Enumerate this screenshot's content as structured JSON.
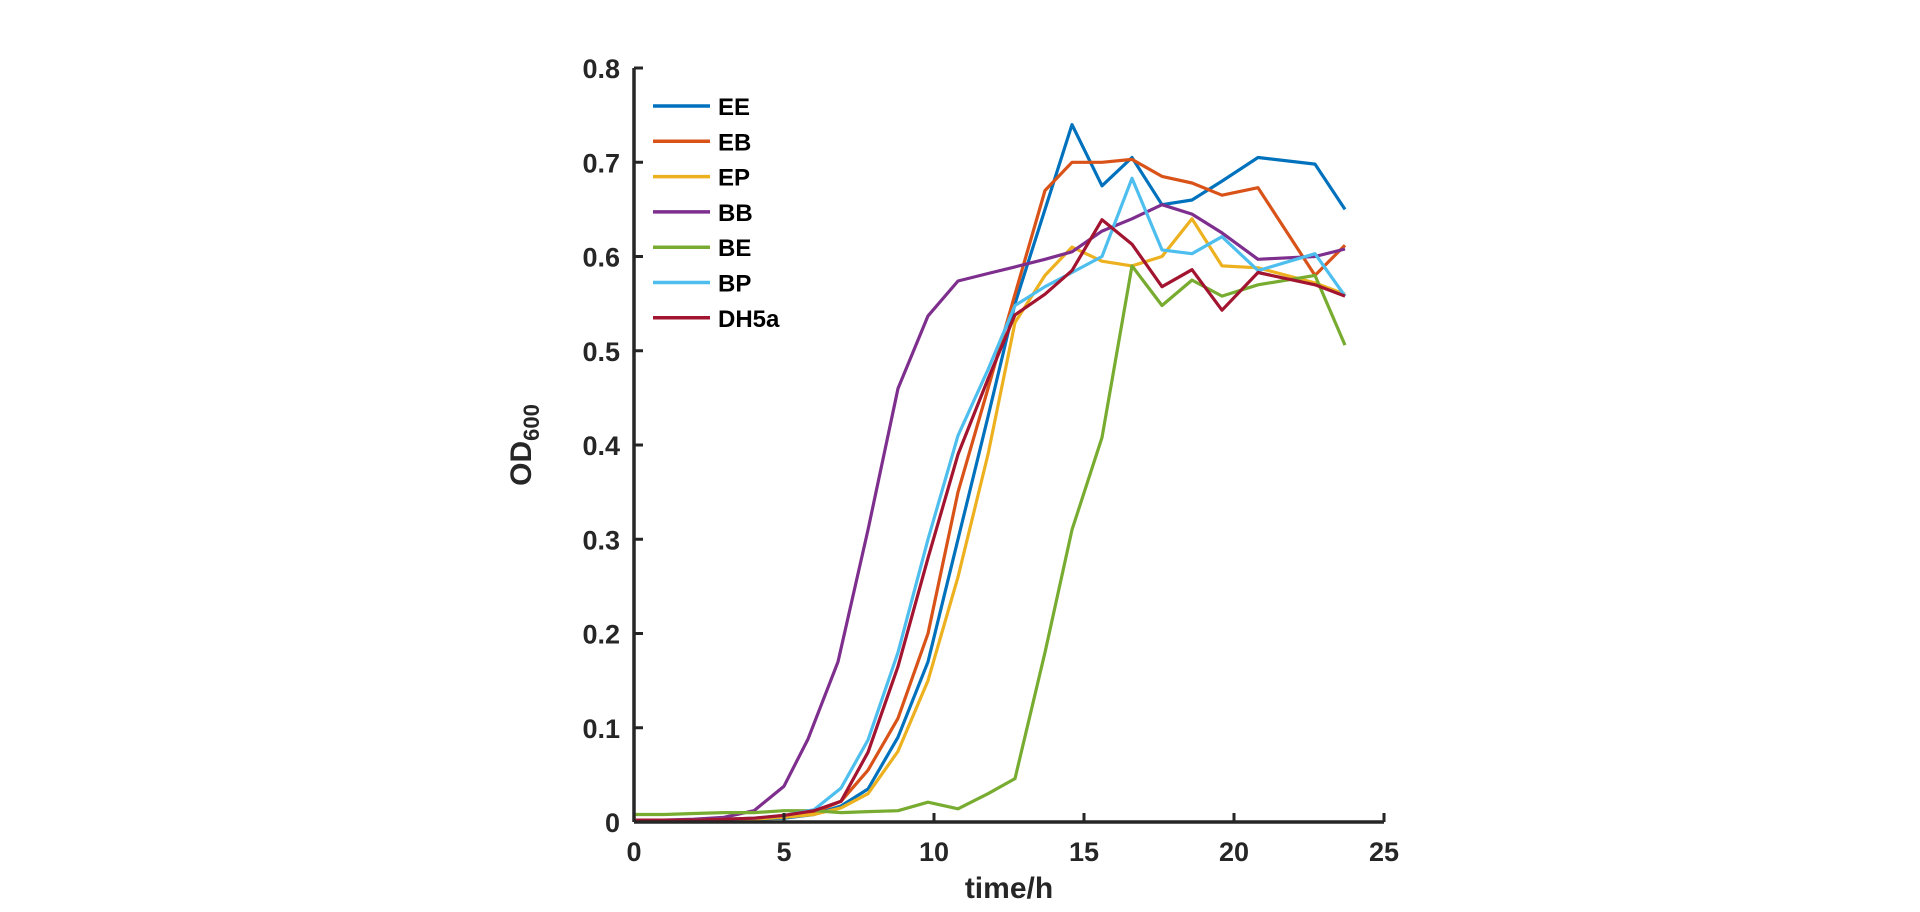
{
  "chart_data": {
    "type": "line",
    "xlabel": "time/h",
    "ylabel": {
      "main": "OD",
      "subscript": "600"
    },
    "xlim": [
      0,
      25
    ],
    "ylim": [
      0,
      0.8
    ],
    "xticks": [
      0,
      5,
      10,
      15,
      20,
      25
    ],
    "yticks": [
      0,
      0.1,
      0.2,
      0.3,
      0.4,
      0.5,
      0.6,
      0.7,
      0.8
    ],
    "ytick_labels": [
      "0",
      "0.1",
      "0.2",
      "0.3",
      "0.4",
      "0.5",
      "0.6",
      "0.7",
      "0.8"
    ],
    "grid": false,
    "legend_position": "top-left",
    "x": [
      0,
      1,
      2,
      3,
      4,
      5,
      6,
      7,
      8,
      9,
      10,
      11,
      12,
      13,
      14,
      15,
      16,
      17,
      18,
      19,
      20,
      21,
      22,
      23,
      23.7
    ],
    "series": [
      {
        "name": "EE",
        "color": "#0072BD",
        "points": [
          [
            0,
            0.002
          ],
          [
            1,
            0.002
          ],
          [
            2,
            0.002
          ],
          [
            3,
            0.002
          ],
          [
            4,
            0.003
          ],
          [
            5,
            0.004
          ],
          [
            6,
            0.008
          ],
          [
            6.9,
            0.017
          ],
          [
            7.8,
            0.035
          ],
          [
            8.8,
            0.09
          ],
          [
            9.8,
            0.17
          ],
          [
            10.8,
            0.3
          ],
          [
            11.8,
            0.43
          ],
          [
            12.7,
            0.55
          ],
          [
            13.7,
            0.65
          ],
          [
            14.6,
            0.74
          ],
          [
            15.6,
            0.675
          ],
          [
            16.6,
            0.705
          ],
          [
            17.6,
            0.655
          ],
          [
            18.6,
            0.66
          ],
          [
            19.6,
            0.68
          ],
          [
            20.8,
            0.705
          ],
          [
            22.7,
            0.698
          ],
          [
            23.7,
            0.65
          ]
        ]
      },
      {
        "name": "EB",
        "color": "#D95319",
        "points": [
          [
            0,
            0.002
          ],
          [
            1,
            0.002
          ],
          [
            2,
            0.002
          ],
          [
            3,
            0.003
          ],
          [
            4,
            0.004
          ],
          [
            5,
            0.006
          ],
          [
            6,
            0.01
          ],
          [
            6.9,
            0.022
          ],
          [
            7.8,
            0.055
          ],
          [
            8.8,
            0.11
          ],
          [
            9.8,
            0.2
          ],
          [
            10.8,
            0.35
          ],
          [
            11.8,
            0.46
          ],
          [
            12.7,
            0.56
          ],
          [
            13.7,
            0.67
          ],
          [
            14.6,
            0.7
          ],
          [
            15.6,
            0.7
          ],
          [
            16.6,
            0.703
          ],
          [
            17.6,
            0.685
          ],
          [
            18.6,
            0.678
          ],
          [
            19.6,
            0.665
          ],
          [
            20.8,
            0.673
          ],
          [
            22.7,
            0.58
          ],
          [
            23.7,
            0.612
          ]
        ]
      },
      {
        "name": "EP",
        "color": "#EDB120",
        "points": [
          [
            0,
            0.001
          ],
          [
            1,
            0.001
          ],
          [
            2,
            0.002
          ],
          [
            3,
            0.002
          ],
          [
            4,
            0.003
          ],
          [
            5,
            0.005
          ],
          [
            6,
            0.008
          ],
          [
            6.9,
            0.015
          ],
          [
            7.8,
            0.03
          ],
          [
            8.8,
            0.075
          ],
          [
            9.8,
            0.15
          ],
          [
            10.8,
            0.26
          ],
          [
            11.8,
            0.39
          ],
          [
            12.7,
            0.53
          ],
          [
            13.7,
            0.58
          ],
          [
            14.6,
            0.61
          ],
          [
            15.6,
            0.595
          ],
          [
            16.6,
            0.59
          ],
          [
            17.6,
            0.6
          ],
          [
            18.6,
            0.64
          ],
          [
            19.6,
            0.59
          ],
          [
            20.8,
            0.588
          ],
          [
            22.7,
            0.572
          ],
          [
            23.7,
            0.56
          ]
        ]
      },
      {
        "name": "BB",
        "color": "#7E2F8E",
        "points": [
          [
            0,
            0.002
          ],
          [
            1,
            0.002
          ],
          [
            2,
            0.003
          ],
          [
            3,
            0.005
          ],
          [
            4,
            0.012
          ],
          [
            5,
            0.038
          ],
          [
            5.8,
            0.088
          ],
          [
            6.8,
            0.17
          ],
          [
            7.8,
            0.31
          ],
          [
            8.8,
            0.46
          ],
          [
            9.8,
            0.537
          ],
          [
            10.8,
            0.574
          ],
          [
            11.8,
            0.582
          ],
          [
            12.7,
            0.589
          ],
          [
            13.7,
            0.597
          ],
          [
            14.6,
            0.605
          ],
          [
            15.6,
            0.627
          ],
          [
            16.6,
            0.64
          ],
          [
            17.6,
            0.655
          ],
          [
            18.6,
            0.645
          ],
          [
            19.6,
            0.625
          ],
          [
            20.8,
            0.597
          ],
          [
            22.7,
            0.6
          ],
          [
            23.7,
            0.608
          ]
        ]
      },
      {
        "name": "BE",
        "color": "#77AC30",
        "points": [
          [
            0,
            0.008
          ],
          [
            1,
            0.008
          ],
          [
            2,
            0.009
          ],
          [
            3,
            0.01
          ],
          [
            4,
            0.01
          ],
          [
            5,
            0.012
          ],
          [
            6,
            0.012
          ],
          [
            6.9,
            0.01
          ],
          [
            7.8,
            0.011
          ],
          [
            8.8,
            0.012
          ],
          [
            9.8,
            0.021
          ],
          [
            10.8,
            0.014
          ],
          [
            11.8,
            0.03
          ],
          [
            12.7,
            0.046
          ],
          [
            13.7,
            0.18
          ],
          [
            14.6,
            0.31
          ],
          [
            15.6,
            0.408
          ],
          [
            16.6,
            0.59
          ],
          [
            17.6,
            0.548
          ],
          [
            18.6,
            0.575
          ],
          [
            19.6,
            0.558
          ],
          [
            20.8,
            0.57
          ],
          [
            22.7,
            0.58
          ],
          [
            23.7,
            0.506
          ]
        ]
      },
      {
        "name": "BP",
        "color": "#4DBEEE",
        "points": [
          [
            0,
            0.002
          ],
          [
            1,
            0.002
          ],
          [
            2,
            0.002
          ],
          [
            3,
            0.003
          ],
          [
            4,
            0.004
          ],
          [
            5,
            0.007
          ],
          [
            6,
            0.013
          ],
          [
            6.9,
            0.036
          ],
          [
            7.8,
            0.087
          ],
          [
            8.8,
            0.18
          ],
          [
            9.8,
            0.3
          ],
          [
            10.8,
            0.41
          ],
          [
            11.8,
            0.48
          ],
          [
            12.7,
            0.548
          ],
          [
            13.7,
            0.568
          ],
          [
            14.6,
            0.583
          ],
          [
            15.6,
            0.6
          ],
          [
            16.6,
            0.683
          ],
          [
            17.6,
            0.607
          ],
          [
            18.6,
            0.603
          ],
          [
            19.6,
            0.621
          ],
          [
            20.8,
            0.585
          ],
          [
            22.7,
            0.603
          ],
          [
            23.7,
            0.558
          ]
        ]
      },
      {
        "name": "DH5a",
        "color": "#A2142F",
        "points": [
          [
            0,
            0.002
          ],
          [
            1,
            0.002
          ],
          [
            2,
            0.002
          ],
          [
            3,
            0.003
          ],
          [
            4,
            0.004
          ],
          [
            5,
            0.007
          ],
          [
            6,
            0.012
          ],
          [
            6.9,
            0.022
          ],
          [
            7.8,
            0.074
          ],
          [
            8.8,
            0.165
          ],
          [
            9.8,
            0.28
          ],
          [
            10.8,
            0.39
          ],
          [
            11.8,
            0.47
          ],
          [
            12.7,
            0.538
          ],
          [
            13.7,
            0.56
          ],
          [
            14.6,
            0.585
          ],
          [
            15.6,
            0.639
          ],
          [
            16.6,
            0.613
          ],
          [
            17.6,
            0.568
          ],
          [
            18.6,
            0.586
          ],
          [
            19.6,
            0.543
          ],
          [
            20.8,
            0.583
          ],
          [
            22.7,
            0.57
          ],
          [
            23.7,
            0.558
          ]
        ]
      }
    ]
  }
}
